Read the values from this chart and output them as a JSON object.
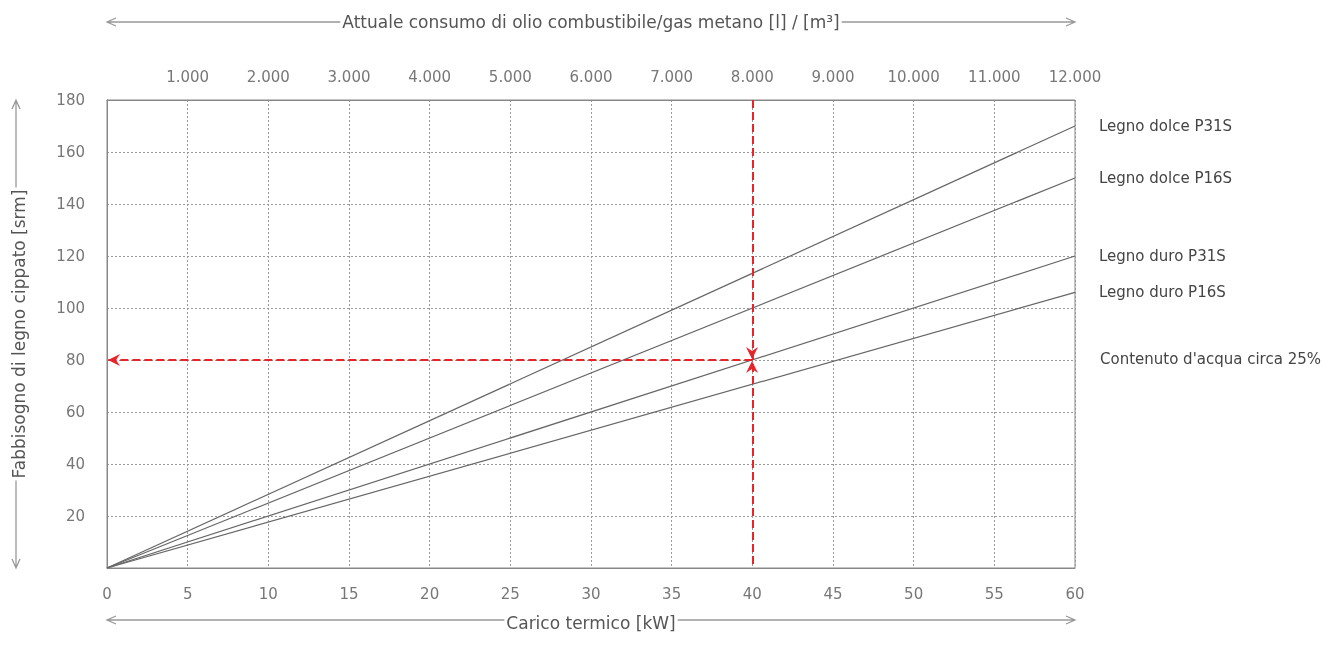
{
  "chart_data": {
    "type": "line",
    "xlabel": "Carico termico [kW]",
    "ylabel": "Fabbisogno di legno cippato [srm]",
    "x2label": "Attuale consumo di olio combustibile/gas metano [l] / [m³]",
    "x": [
      0,
      60
    ],
    "series": [
      {
        "name": "Legno dolce P31S",
        "color": "#666666",
        "values": [
          0,
          170
        ]
      },
      {
        "name": "Legno dolce P16S",
        "color": "#666666",
        "values": [
          0,
          150
        ]
      },
      {
        "name": "Legno duro P31S",
        "color": "#666666",
        "values": [
          0,
          120
        ]
      },
      {
        "name": "Legno duro P16S",
        "color": "#666666",
        "values": [
          0,
          106
        ]
      }
    ],
    "xlim": [
      0,
      60
    ],
    "xticks": [
      0,
      5,
      10,
      15,
      20,
      25,
      30,
      35,
      40,
      45,
      50,
      55,
      60
    ],
    "ylim": [
      0,
      180
    ],
    "yticks": [
      {
        "value": 0,
        "label": null
      },
      20,
      40,
      60,
      80,
      100,
      120,
      140,
      160,
      180
    ],
    "x2lim": [
      0,
      12000
    ],
    "x2ticks": [
      {
        "value": 1000,
        "label": "1.000"
      },
      {
        "value": 2000,
        "label": "2.000"
      },
      {
        "value": 3000,
        "label": "3.000"
      },
      {
        "value": 4000,
        "label": "4.000"
      },
      {
        "value": 5000,
        "label": "5.000"
      },
      {
        "value": 6000,
        "label": "6.000"
      },
      {
        "value": 7000,
        "label": "7.000"
      },
      {
        "value": 8000,
        "label": "8.000"
      },
      {
        "value": 9000,
        "label": "9.000"
      },
      {
        "value": 10000,
        "label": "10.000"
      },
      {
        "value": 11000,
        "label": "11.000"
      },
      {
        "value": 12000,
        "label": "12.000"
      }
    ],
    "ref_lines": [
      {
        "axis": "x",
        "value": 40,
        "color": "#e8232a",
        "line_style": "dashed"
      },
      {
        "axis": "y",
        "value": 80,
        "color": "#e8232a",
        "line_style": "dashed"
      }
    ],
    "annotations": [
      "Contenuto d'acqua circa 25%"
    ],
    "grid": true,
    "legend": false,
    "marker": "none",
    "line_style": "solid"
  }
}
